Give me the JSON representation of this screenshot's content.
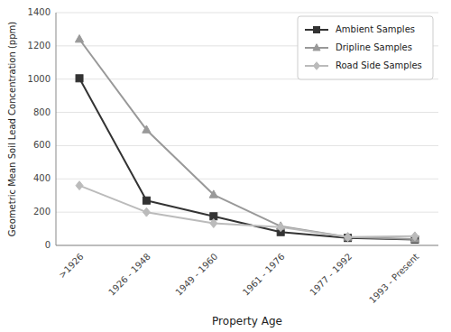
{
  "chart_data": {
    "type": "line",
    "xlabel": "Property Age",
    "ylabel": "Geometric Mean Soil Lead Concentration (ppm)",
    "categories": [
      ">1926",
      "1926 - 1948",
      "1949 - 1960",
      "1961 - 1976",
      "1977 - 1992",
      "1993 - Present"
    ],
    "series": [
      {
        "name": "Ambient Samples",
        "color": "#333333",
        "marker": "square",
        "values": [
          1005,
          270,
          175,
          80,
          45,
          35
        ]
      },
      {
        "name": "Dripline Samples",
        "color": "#999999",
        "marker": "triangle",
        "values": [
          1240,
          695,
          305,
          115,
          50,
          38
        ]
      },
      {
        "name": "Road Side Samples",
        "color": "#bbbbbb",
        "marker": "diamond",
        "values": [
          360,
          200,
          133,
          110,
          50,
          55
        ]
      }
    ],
    "ylim": [
      0,
      1400
    ],
    "yticks": [
      0,
      200,
      400,
      600,
      800,
      1000,
      1200,
      1400
    ],
    "grid": true,
    "legend": "upper right"
  }
}
